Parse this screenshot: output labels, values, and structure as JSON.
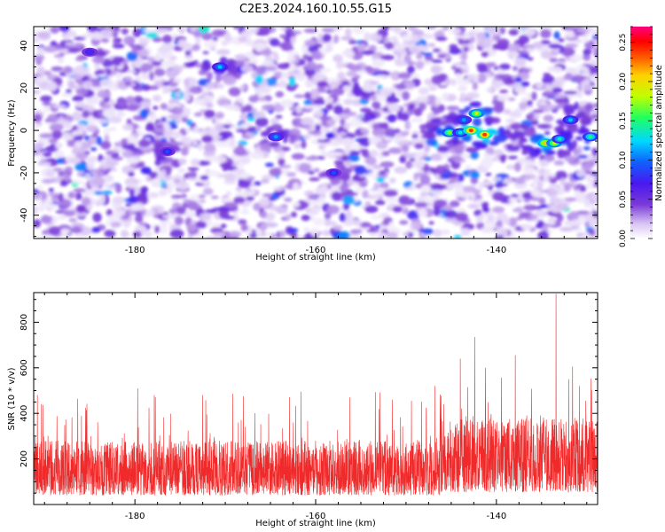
{
  "figure_title": "C2E3.2024.160.10.55.G15",
  "colors": {
    "noise_line": "#f02a2a",
    "colormap": [
      "#ffffff",
      "#d8c4f4",
      "#7a3ad8",
      "#4a18f0",
      "#1060ff",
      "#00d8ff",
      "#20ff60",
      "#c0ff00",
      "#ffd000",
      "#ff6000",
      "#ff0000",
      "#ff0080"
    ]
  },
  "chart_data": [
    {
      "type": "heatmap",
      "title": "",
      "xlabel": "Height of straight line (km)",
      "ylabel": "Frequency (Hz)",
      "xlim": [
        -191.2,
        -128.8
      ],
      "ylim": [
        -51,
        49
      ],
      "xticks": [
        -180,
        -160,
        -140
      ],
      "yticks": [
        -40,
        -20,
        0,
        20,
        40
      ],
      "colorbar": {
        "label": "Normalized spectral amplitude",
        "range": [
          0,
          0.27
        ],
        "ticks": [
          0.0,
          0.05,
          0.1,
          0.15,
          0.2,
          0.25
        ],
        "tick_labels": [
          "0.00",
          "0.05",
          "0.10",
          "0.15",
          "0.20",
          "0.25"
        ]
      },
      "background_level": 0.03,
      "hotspots": [
        {
          "x": -145.2,
          "y": -1,
          "value": 0.17
        },
        {
          "x": -144.0,
          "y": -1,
          "value": 0.13
        },
        {
          "x": -142.8,
          "y": 0,
          "value": 0.24
        },
        {
          "x": -142.2,
          "y": 8,
          "value": 0.19
        },
        {
          "x": -141.3,
          "y": -2,
          "value": 0.24
        },
        {
          "x": -143.6,
          "y": 5,
          "value": 0.11
        },
        {
          "x": -134.6,
          "y": -6,
          "value": 0.21
        },
        {
          "x": -133.6,
          "y": -6,
          "value": 0.19
        },
        {
          "x": -133.0,
          "y": -4,
          "value": 0.14
        },
        {
          "x": -131.8,
          "y": 5,
          "value": 0.12
        },
        {
          "x": -129.6,
          "y": -3,
          "value": 0.15
        },
        {
          "x": -170.6,
          "y": 30,
          "value": 0.12
        },
        {
          "x": -164.4,
          "y": -3,
          "value": 0.11
        },
        {
          "x": -176.4,
          "y": -10,
          "value": 0.09
        },
        {
          "x": -185.0,
          "y": 37,
          "value": 0.08
        },
        {
          "x": -158.0,
          "y": -20,
          "value": 0.09
        }
      ]
    },
    {
      "type": "line",
      "title": "",
      "xlabel": "Height of straight line (km)",
      "ylabel": "SNR (10 * v/v)",
      "xlim": [
        -191.2,
        -128.8
      ],
      "ylim": [
        0,
        930
      ],
      "xticks": [
        -180,
        -160,
        -140
      ],
      "yticks": [
        200,
        400,
        600,
        800
      ],
      "series": [
        {
          "baseline_mean": 160,
          "peaks": [
            {
              "x": -190.8,
              "y": 480
            },
            {
              "x": -179.7,
              "y": 510
            },
            {
              "x": -172.5,
              "y": 480
            },
            {
              "x": -168.0,
              "y": 475
            },
            {
              "x": -161.6,
              "y": 495
            },
            {
              "x": -156.2,
              "y": 470
            },
            {
              "x": -151.5,
              "y": 460
            },
            {
              "x": -146.8,
              "y": 520
            },
            {
              "x": -144.0,
              "y": 640
            },
            {
              "x": -142.4,
              "y": 735
            },
            {
              "x": -141.2,
              "y": 600
            },
            {
              "x": -137.9,
              "y": 655
            },
            {
              "x": -133.4,
              "y": 925
            },
            {
              "x": -132.0,
              "y": 550
            },
            {
              "x": -130.8,
              "y": 520
            }
          ]
        }
      ]
    }
  ]
}
